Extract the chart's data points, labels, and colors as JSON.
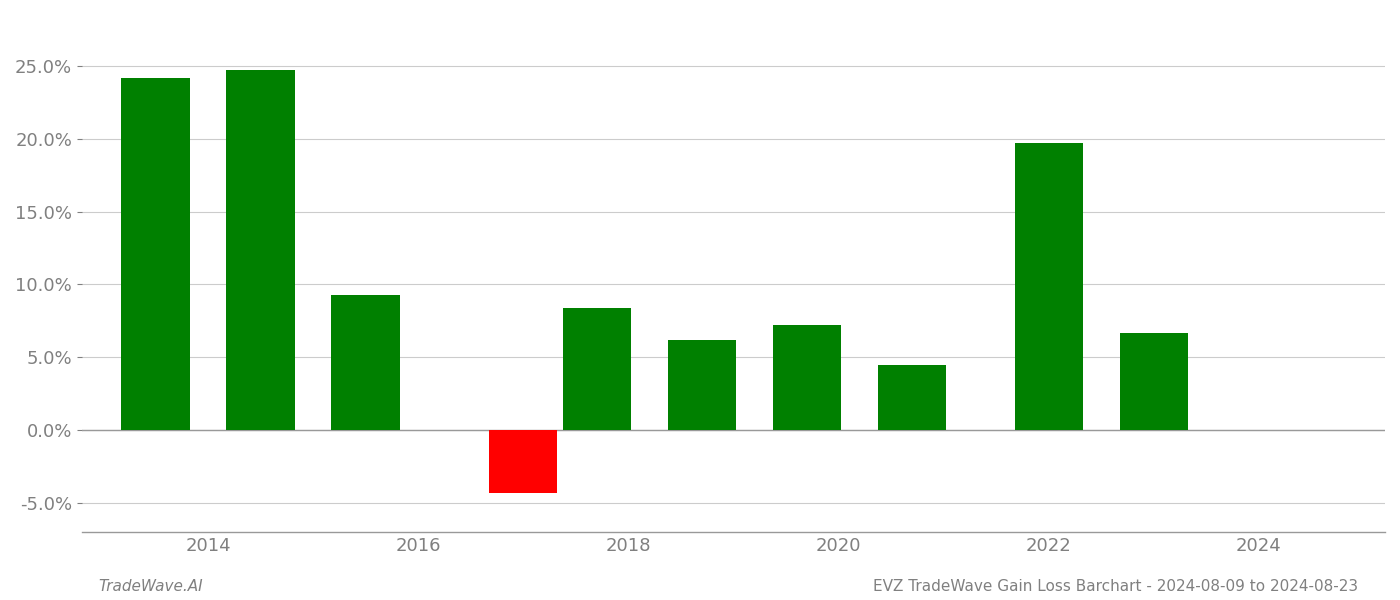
{
  "years": [
    2013.5,
    2014.5,
    2015.5,
    2017.0,
    2017.7,
    2018.7,
    2019.7,
    2020.7,
    2022.0,
    2023.0
  ],
  "values": [
    0.242,
    0.247,
    0.093,
    -0.043,
    0.084,
    0.062,
    0.072,
    0.045,
    0.197,
    0.067
  ],
  "colors": [
    "#008000",
    "#008000",
    "#008000",
    "#ff0000",
    "#008000",
    "#008000",
    "#008000",
    "#008000",
    "#008000",
    "#008000"
  ],
  "ylim": [
    -0.07,
    0.285
  ],
  "yticks": [
    -0.05,
    0.0,
    0.05,
    0.1,
    0.15,
    0.2,
    0.25
  ],
  "xlim": [
    2012.8,
    2025.2
  ],
  "xticks": [
    2014,
    2016,
    2018,
    2020,
    2022,
    2024
  ],
  "background_color": "#ffffff",
  "bar_width": 0.65,
  "grid_color": "#cccccc",
  "text_color": "#808080",
  "footer_left": "TradeWave.AI",
  "footer_right": "EVZ TradeWave Gain Loss Barchart - 2024-08-09 to 2024-08-23",
  "footer_fontsize": 11,
  "tick_fontsize": 13
}
